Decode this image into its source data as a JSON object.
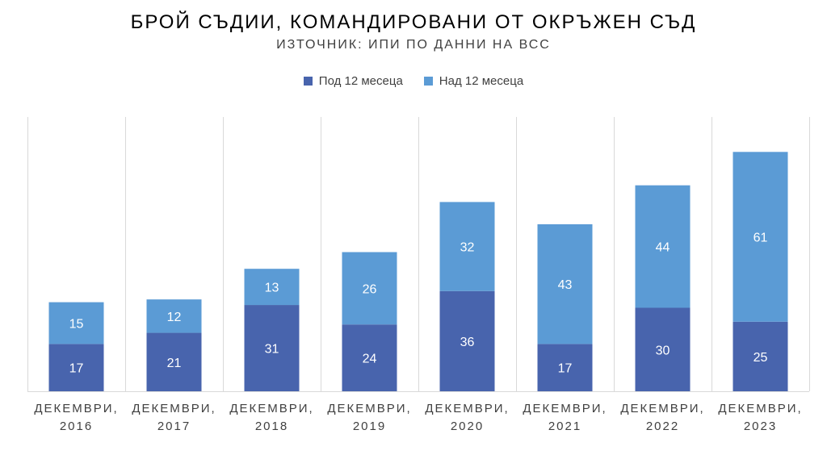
{
  "title": "БРОЙ СЪДИИ, КОМАНДИРОВАНИ ОТ ОКРЪЖЕН СЪД",
  "subtitle": "ИЗТОЧНИК: ИПИ ПО ДАННИ НА ВСС",
  "legend": [
    {
      "label": "Под 12 месеца",
      "color": "#4864ad"
    },
    {
      "label": "Над 12 месеца",
      "color": "#5b9bd5"
    }
  ],
  "chart_data": {
    "type": "bar",
    "stacked": true,
    "categories": [
      [
        "ДЕКЕМВРИ,",
        "2016"
      ],
      [
        "ДЕКЕМВРИ,",
        "2017"
      ],
      [
        "ДЕКЕМВРИ,",
        "2018"
      ],
      [
        "ДЕКЕМВРИ,",
        "2019"
      ],
      [
        "ДЕКЕМВРИ,",
        "2020"
      ],
      [
        "ДЕКЕМВРИ,",
        "2021"
      ],
      [
        "ДЕКЕМВРИ,",
        "2022"
      ],
      [
        "ДЕКЕМВРИ,",
        "2023"
      ]
    ],
    "series": [
      {
        "name": "Под 12 месеца",
        "color": "#4864ad",
        "values": [
          17,
          21,
          31,
          24,
          36,
          17,
          30,
          25
        ]
      },
      {
        "name": "Над 12 месеца",
        "color": "#5b9bd5",
        "values": [
          15,
          12,
          13,
          26,
          32,
          43,
          44,
          61
        ]
      }
    ],
    "title": "БРОЙ СЪДИИ, КОМАНДИРОВАНИ ОТ ОКРЪЖЕН СЪД",
    "subtitle": "ИЗТОЧНИК: ИПИ ПО ДАННИ НА ВСС",
    "xlabel": "",
    "ylabel": "",
    "ylim": [
      0,
      100
    ],
    "y_axis_visible": false,
    "grid": "vertical-category-separators",
    "legend_position": "top",
    "data_labels": true
  }
}
